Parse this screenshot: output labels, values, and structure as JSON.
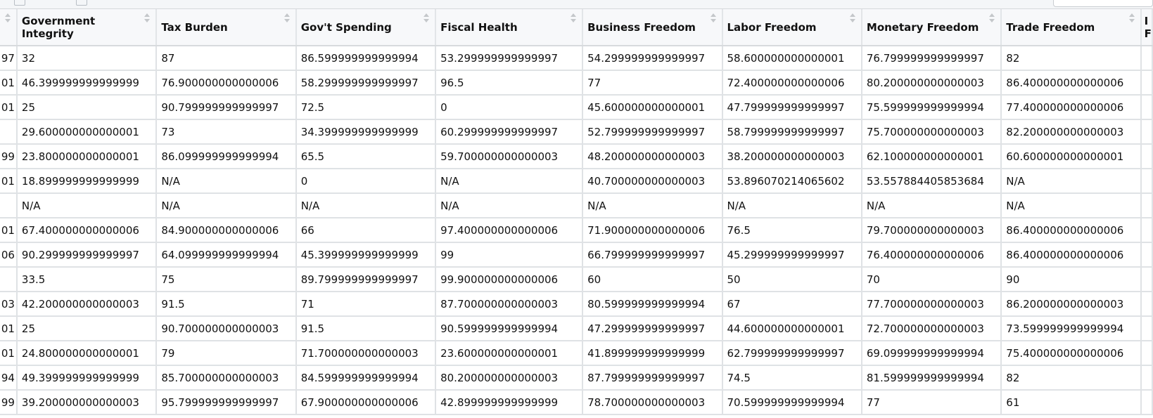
{
  "table": {
    "left_partial_header": "",
    "right_partial_header": "I F",
    "columns": [
      "Government Integrity",
      "Tax Burden",
      "Gov't Spending",
      "Fiscal Health",
      "Business Freedom",
      "Labor Freedom",
      "Monetary Freedom",
      "Trade Freedom"
    ],
    "left_partial_cells": [
      "97",
      "01",
      "01",
      "",
      "99",
      "01",
      "",
      "01",
      "06",
      "",
      "03",
      "01",
      "01",
      "94",
      "99"
    ],
    "rows": [
      [
        "32",
        "87",
        "86.599999999999994",
        "53.299999999999997",
        "54.299999999999997",
        "58.600000000000001",
        "76.799999999999997",
        "82"
      ],
      [
        "46.399999999999999",
        "76.900000000000006",
        "58.299999999999997",
        "96.5",
        "77",
        "72.400000000000006",
        "80.200000000000003",
        "86.400000000000006"
      ],
      [
        "25",
        "90.799999999999997",
        "72.5",
        "0",
        "45.600000000000001",
        "47.799999999999997",
        "75.599999999999994",
        "77.400000000000006"
      ],
      [
        "29.600000000000001",
        "73",
        "34.399999999999999",
        "60.299999999999997",
        "52.799999999999997",
        "58.799999999999997",
        "75.700000000000003",
        "82.200000000000003"
      ],
      [
        "23.800000000000001",
        "86.099999999999994",
        "65.5",
        "59.700000000000003",
        "48.200000000000003",
        "38.200000000000003",
        "62.100000000000001",
        "60.600000000000001"
      ],
      [
        "18.899999999999999",
        "N/A",
        "0",
        "N/A",
        "40.700000000000003",
        "53.896070214065602",
        "53.557884405853684",
        "N/A"
      ],
      [
        "N/A",
        "N/A",
        "N/A",
        "N/A",
        "N/A",
        "N/A",
        "N/A",
        "N/A"
      ],
      [
        "67.400000000000006",
        "84.900000000000006",
        "66",
        "97.400000000000006",
        "71.900000000000006",
        "76.5",
        "79.700000000000003",
        "86.400000000000006"
      ],
      [
        "90.299999999999997",
        "64.099999999999994",
        "45.399999999999999",
        "99",
        "66.799999999999997",
        "45.299999999999997",
        "76.400000000000006",
        "86.400000000000006"
      ],
      [
        "33.5",
        "75",
        "89.799999999999997",
        "99.900000000000006",
        "60",
        "50",
        "70",
        "90"
      ],
      [
        "42.200000000000003",
        "91.5",
        "71",
        "87.700000000000003",
        "80.599999999999994",
        "67",
        "77.700000000000003",
        "86.200000000000003"
      ],
      [
        "25",
        "90.700000000000003",
        "91.5",
        "90.599999999999994",
        "47.299999999999997",
        "44.600000000000001",
        "72.700000000000003",
        "73.599999999999994"
      ],
      [
        "24.800000000000001",
        "79",
        "71.700000000000003",
        "23.600000000000001",
        "41.899999999999999",
        "62.799999999999997",
        "69.099999999999994",
        "75.400000000000006"
      ],
      [
        "49.399999999999999",
        "85.700000000000003",
        "84.599999999999994",
        "80.200000000000003",
        "87.799999999999997",
        "74.5",
        "81.599999999999994",
        "82"
      ],
      [
        "39.200000000000003",
        "95.799999999999997",
        "67.900000000000006",
        "42.899999999999999",
        "78.700000000000003",
        "70.599999999999994",
        "77",
        "61"
      ]
    ]
  }
}
